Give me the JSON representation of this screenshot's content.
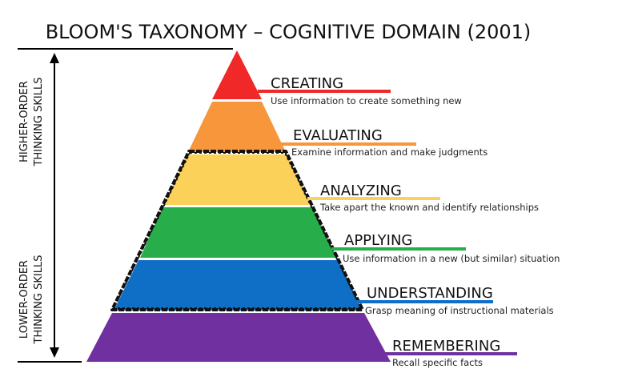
{
  "title": "BLOOM'S TAXONOMY – COGNITIVE DOMAIN (2001)",
  "side_labels": {
    "higher_line1": "HIGHER-ORDER",
    "higher_line2": "THINKING SKILLS",
    "lower_line1": "LOWER-ORDER",
    "lower_line2": "THINKING SKILLS"
  },
  "levels": [
    {
      "name": "CREATING",
      "description": "Use information to create something new",
      "color": "#f02828"
    },
    {
      "name": "EVALUATING",
      "description": "Examine information and make judgments",
      "color": "#f7963a"
    },
    {
      "name": "ANALYZING",
      "description": "Take apart the known and identify relationships",
      "color": "#fcd15a"
    },
    {
      "name": "APPLYING",
      "description": "Use information in a new (but similar) situation",
      "color": "#27ad4a"
    },
    {
      "name": "UNDERSTANDING",
      "description": "Grasp meaning of instructional materials",
      "color": "#0f6fc6"
    },
    {
      "name": "REMEMBERING",
      "description": "Recall specific facts",
      "color": "#7030a0"
    }
  ]
}
